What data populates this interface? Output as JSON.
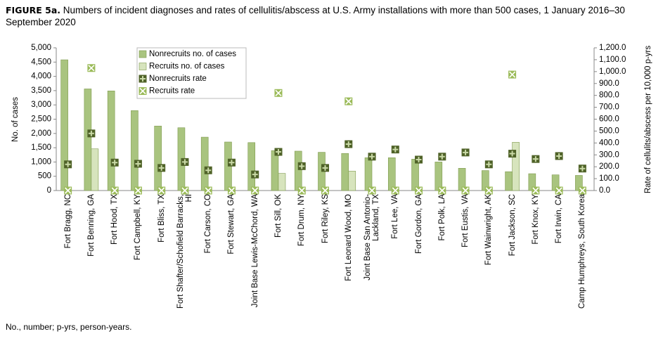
{
  "chart_data": {
    "type": "bar",
    "title_label": "FIGURE 5a.",
    "title": "Numbers of incident diagnoses and rates of cellulitis/abscess at U.S. Army installations with more than 500 cases, 1 January 2016–30 September 2020",
    "footnote": "No., number; p-yrs, person-years.",
    "ylabel": "No. of cases",
    "y2label": "Rate of cellulits/abscess per 10,000 p-yrs",
    "categories": [
      "Fort Bragg, NC",
      "Fort Benning, GA",
      "Fort Hood, TX",
      "Fort Campbell, KY",
      "Fort Bliss, TX",
      "Fort Shafter/Schofield Barracks, HI",
      "Fort Carson, CO",
      "Fort Stewart, GA",
      "Joint Base Lewis-McChord, WA",
      "Fort Sill, OK",
      "Fort Drum, NY",
      "Fort Riley, KS",
      "Fort Leonard Wood, MO",
      "Joint Base San Antonio-Lackland, TX",
      "Fort Lee, VA",
      "Fort Gordon, GA",
      "Fort Polk, LA",
      "Fort Eustis, VA",
      "Fort Wainwright, AK",
      "Fort Jackson, SC",
      "Fort Knox, KY",
      "Fort Irwin, CA",
      "Camp Humphreys, South Korea"
    ],
    "series": [
      {
        "name": "Nonrecruits no. of cases",
        "type": "bar",
        "color": "#a9c47f",
        "values": [
          4580,
          3560,
          3490,
          2800,
          2260,
          2200,
          1870,
          1700,
          1680,
          1400,
          1380,
          1340,
          1300,
          1150,
          1150,
          1100,
          1000,
          780,
          700,
          660,
          590,
          550,
          530
        ]
      },
      {
        "name": "Recruits no. of cases",
        "type": "bar",
        "color": "#d7e4bd",
        "values": [
          0,
          1460,
          0,
          0,
          0,
          0,
          0,
          0,
          0,
          600,
          0,
          0,
          680,
          0,
          0,
          0,
          0,
          0,
          0,
          1690,
          0,
          0,
          0
        ]
      },
      {
        "name": "Nonrecruits rate",
        "type": "scatter",
        "marker": "plus",
        "color": "#4f6228",
        "axis": "y2",
        "values": [
          220,
          480,
          235,
          225,
          190,
          240,
          170,
          235,
          135,
          325,
          205,
          190,
          390,
          285,
          345,
          260,
          285,
          320,
          220,
          310,
          265,
          290,
          185
        ]
      },
      {
        "name": "Recruits rate",
        "type": "scatter",
        "marker": "x",
        "color": "#9bbb59",
        "axis": "y2",
        "values": [
          0,
          1030,
          0,
          0,
          0,
          0,
          0,
          0,
          0,
          820,
          0,
          0,
          750,
          0,
          0,
          0,
          0,
          0,
          0,
          975,
          0,
          0,
          0
        ]
      }
    ],
    "ylim": [
      0,
      5000
    ],
    "yticks": [
      0,
      {
        "value": 500,
        "label": "500"
      },
      {
        "value": 1000,
        "label": "1,000"
      },
      {
        "value": 1500,
        "label": "1,500"
      },
      {
        "value": 2000,
        "label": "2,000"
      },
      {
        "value": 2500,
        "label": "2,500"
      },
      {
        "value": 3000,
        "label": "3,000"
      },
      {
        "value": 3500,
        "label": "3,500"
      },
      {
        "value": 4000,
        "label": "4,000"
      },
      {
        "value": 4500,
        "label": "4,500"
      },
      {
        "value": 5000,
        "label": "5,000"
      }
    ],
    "y2lim": [
      0,
      1200
    ],
    "y2ticks": [
      {
        "value": 0,
        "label": "0.0"
      },
      {
        "value": 100,
        "label": "100.0"
      },
      {
        "value": 200,
        "label": "200.0"
      },
      {
        "value": 300,
        "label": "300.0"
      },
      {
        "value": 400,
        "label": "400.0"
      },
      {
        "value": 500,
        "label": "500.0"
      },
      {
        "value": 600,
        "label": "600.0"
      },
      {
        "value": 700,
        "label": "700.0"
      },
      {
        "value": 800,
        "label": "800.0"
      },
      {
        "value": 900,
        "label": "900.0"
      },
      {
        "value": 1000,
        "label": "1,000.0"
      },
      {
        "value": 1100,
        "label": "1,100.0"
      },
      {
        "value": 1200,
        "label": "1,200.0"
      }
    ],
    "grid": false,
    "legend": "top-left"
  }
}
